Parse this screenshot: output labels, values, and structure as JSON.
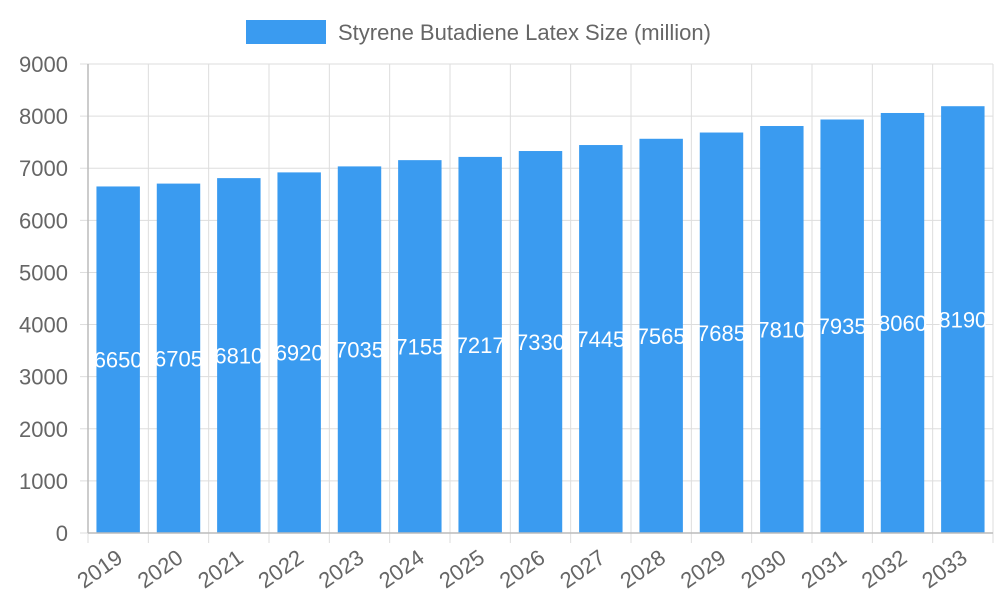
{
  "legend": {
    "label": "Styrene Butadiene Latex Size (million)",
    "color": "#3a9bf0"
  },
  "chart_data": {
    "type": "bar",
    "categories": [
      "2019",
      "2020",
      "2021",
      "2022",
      "2023",
      "2024",
      "2025",
      "2026",
      "2027",
      "2028",
      "2029",
      "2030",
      "2031",
      "2032",
      "2033"
    ],
    "series": [
      {
        "name": "Styrene Butadiene Latex Size (million)",
        "values": [
          6650,
          6705,
          6810,
          6920,
          7035,
          7155,
          7217,
          7330,
          7445,
          7565,
          7685,
          7810,
          7935,
          8060,
          8190
        ],
        "color": "#3a9bf0"
      }
    ],
    "ylim": [
      0,
      9000
    ],
    "yticks": [
      0,
      1000,
      2000,
      3000,
      4000,
      5000,
      6000,
      7000,
      8000,
      9000
    ],
    "ytick_labels": [
      "0",
      "1000",
      "2000",
      "3000",
      "4000",
      "5000",
      "6000",
      "7000",
      "8000",
      "9000"
    ],
    "data_labels": [
      "6650",
      "6705",
      "6810",
      "6920",
      "7035",
      "7155",
      "7217",
      "7330",
      "7445",
      "7565",
      "7685",
      "7810",
      "7935",
      "8060",
      "8190"
    ],
    "grid": true,
    "legend_position": "top"
  }
}
